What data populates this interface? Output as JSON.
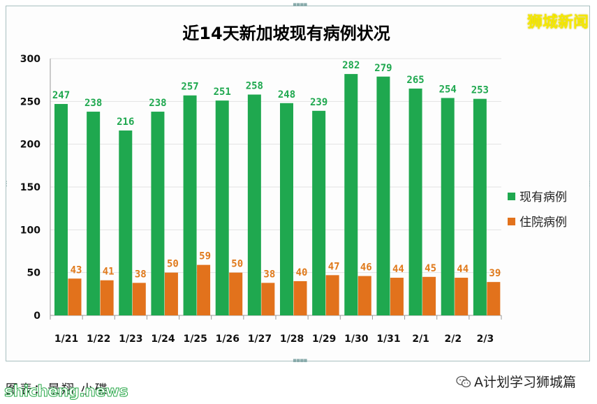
{
  "title": "近14天新加坡现有病例状况",
  "brand": "狮城新闻",
  "footer": {
    "credit": "图表：景翔·小碟",
    "source": "A计划学习狮城篇",
    "watermark": "shicheng.news"
  },
  "colors": {
    "green": "#1fa84f",
    "orange": "#e2721c",
    "green_label": "#1fa84f",
    "orange_label": "#e07a1c"
  },
  "icons": {
    "source": "wechat-icon"
  },
  "chart_data": {
    "type": "bar",
    "title": "近14天新加坡现有病例状况",
    "categories": [
      "1/21",
      "1/22",
      "1/23",
      "1/24",
      "1/25",
      "1/26",
      "1/27",
      "1/28",
      "1/29",
      "1/30",
      "1/31",
      "2/1",
      "2/2",
      "2/3"
    ],
    "series": [
      {
        "name": "现有病例",
        "color": "#1fa84f",
        "values": [
          247,
          238,
          216,
          238,
          257,
          251,
          258,
          248,
          239,
          282,
          279,
          265,
          254,
          253
        ]
      },
      {
        "name": "住院病例",
        "color": "#e2721c",
        "values": [
          43,
          41,
          38,
          50,
          59,
          50,
          38,
          40,
          47,
          46,
          44,
          45,
          44,
          39
        ]
      }
    ],
    "ylim": [
      0,
      300
    ],
    "yticks": [
      0,
      50,
      100,
      150,
      200,
      250,
      300
    ],
    "grid": true,
    "legend": "right",
    "data_labels": true
  }
}
